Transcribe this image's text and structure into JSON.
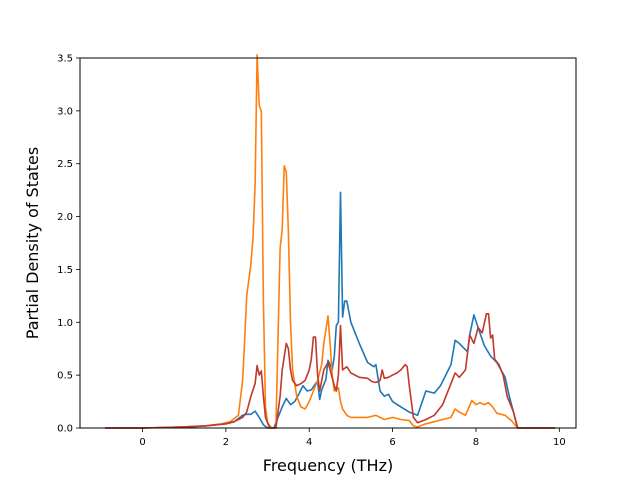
{
  "chart_data": {
    "type": "line",
    "title": "",
    "xlabel": "Frequency (THz)",
    "ylabel": "Partial Density of States",
    "xlim": [
      -1.5,
      10.4
    ],
    "ylim": [
      0,
      3.5
    ],
    "xticks": [
      0,
      2,
      4,
      6,
      8,
      10
    ],
    "yticks": [
      0.0,
      0.5,
      1.0,
      1.5,
      2.0,
      2.5,
      3.0,
      3.5
    ],
    "ytick_labels": [
      "0.0",
      "0.5",
      "1.0",
      "1.5",
      "2.0",
      "2.5",
      "3.0",
      "3.5"
    ],
    "grid": false,
    "legend": false,
    "series": [
      {
        "color": "#1f77b4",
        "points": [
          [
            -0.9,
            0
          ],
          [
            0,
            0
          ],
          [
            0.5,
            0.005
          ],
          [
            1.0,
            0.01
          ],
          [
            1.5,
            0.02
          ],
          [
            2.0,
            0.04
          ],
          [
            2.2,
            0.06
          ],
          [
            2.4,
            0.12
          ],
          [
            2.5,
            0.13
          ],
          [
            2.6,
            0.13
          ],
          [
            2.7,
            0.16
          ],
          [
            2.8,
            0.1
          ],
          [
            2.9,
            0.03
          ],
          [
            3.0,
            0.0
          ],
          [
            3.15,
            0.0
          ],
          [
            3.25,
            0.1
          ],
          [
            3.35,
            0.2
          ],
          [
            3.45,
            0.28
          ],
          [
            3.55,
            0.22
          ],
          [
            3.65,
            0.25
          ],
          [
            3.75,
            0.32
          ],
          [
            3.85,
            0.4
          ],
          [
            3.95,
            0.35
          ],
          [
            4.05,
            0.36
          ],
          [
            4.15,
            0.42
          ],
          [
            4.2,
            0.44
          ],
          [
            4.25,
            0.27
          ],
          [
            4.3,
            0.36
          ],
          [
            4.4,
            0.46
          ],
          [
            4.45,
            0.64
          ],
          [
            4.5,
            0.6
          ],
          [
            4.55,
            0.55
          ],
          [
            4.6,
            0.68
          ],
          [
            4.65,
            0.97
          ],
          [
            4.7,
            1.0
          ],
          [
            4.75,
            2.23
          ],
          [
            4.8,
            1.05
          ],
          [
            4.85,
            1.2
          ],
          [
            4.9,
            1.2
          ],
          [
            5.0,
            1.0
          ],
          [
            5.2,
            0.8
          ],
          [
            5.4,
            0.62
          ],
          [
            5.55,
            0.58
          ],
          [
            5.6,
            0.6
          ],
          [
            5.7,
            0.35
          ],
          [
            5.8,
            0.3
          ],
          [
            5.9,
            0.32
          ],
          [
            6.0,
            0.25
          ],
          [
            6.2,
            0.2
          ],
          [
            6.4,
            0.15
          ],
          [
            6.6,
            0.12
          ],
          [
            6.8,
            0.35
          ],
          [
            7.0,
            0.33
          ],
          [
            7.15,
            0.4
          ],
          [
            7.3,
            0.52
          ],
          [
            7.4,
            0.6
          ],
          [
            7.5,
            0.83
          ],
          [
            7.6,
            0.8
          ],
          [
            7.8,
            0.72
          ],
          [
            7.85,
            0.88
          ],
          [
            7.95,
            1.07
          ],
          [
            8.05,
            0.95
          ],
          [
            8.2,
            0.78
          ],
          [
            8.35,
            0.68
          ],
          [
            8.5,
            0.62
          ],
          [
            8.6,
            0.55
          ],
          [
            8.7,
            0.48
          ],
          [
            8.8,
            0.3
          ],
          [
            8.9,
            0.15
          ],
          [
            9.0,
            0.0
          ],
          [
            9.9,
            0
          ]
        ]
      },
      {
        "color": "#ff7f0e",
        "points": [
          [
            -0.9,
            0
          ],
          [
            0,
            0
          ],
          [
            0.5,
            0.005
          ],
          [
            1.0,
            0.01
          ],
          [
            1.5,
            0.02
          ],
          [
            1.9,
            0.04
          ],
          [
            2.1,
            0.06
          ],
          [
            2.3,
            0.12
          ],
          [
            2.4,
            0.45
          ],
          [
            2.45,
            0.82
          ],
          [
            2.5,
            1.25
          ],
          [
            2.6,
            1.55
          ],
          [
            2.65,
            1.8
          ],
          [
            2.7,
            2.3
          ],
          [
            2.75,
            3.53
          ],
          [
            2.8,
            3.05
          ],
          [
            2.85,
            3.0
          ],
          [
            2.9,
            1.2
          ],
          [
            2.95,
            0.2
          ],
          [
            3.0,
            0.05
          ],
          [
            3.1,
            0.0
          ],
          [
            3.2,
            0.0
          ],
          [
            3.3,
            1.7
          ],
          [
            3.35,
            1.88
          ],
          [
            3.4,
            2.48
          ],
          [
            3.45,
            2.42
          ],
          [
            3.5,
            1.85
          ],
          [
            3.55,
            1.0
          ],
          [
            3.6,
            0.55
          ],
          [
            3.7,
            0.3
          ],
          [
            3.8,
            0.2
          ],
          [
            3.9,
            0.18
          ],
          [
            4.0,
            0.25
          ],
          [
            4.2,
            0.45
          ],
          [
            4.3,
            0.6
          ],
          [
            4.35,
            0.8
          ],
          [
            4.45,
            1.06
          ],
          [
            4.5,
            0.8
          ],
          [
            4.55,
            0.5
          ],
          [
            4.6,
            0.35
          ],
          [
            4.7,
            0.38
          ],
          [
            4.75,
            0.25
          ],
          [
            4.8,
            0.18
          ],
          [
            4.9,
            0.12
          ],
          [
            5.0,
            0.1
          ],
          [
            5.2,
            0.1
          ],
          [
            5.4,
            0.1
          ],
          [
            5.6,
            0.12
          ],
          [
            5.8,
            0.08
          ],
          [
            6.0,
            0.1
          ],
          [
            6.2,
            0.08
          ],
          [
            6.4,
            0.07
          ],
          [
            6.5,
            0.02
          ],
          [
            6.6,
            0.01
          ],
          [
            6.8,
            0.04
          ],
          [
            7.0,
            0.06
          ],
          [
            7.2,
            0.08
          ],
          [
            7.4,
            0.1
          ],
          [
            7.5,
            0.18
          ],
          [
            7.6,
            0.15
          ],
          [
            7.75,
            0.12
          ],
          [
            7.9,
            0.26
          ],
          [
            8.0,
            0.22
          ],
          [
            8.1,
            0.24
          ],
          [
            8.2,
            0.22
          ],
          [
            8.3,
            0.24
          ],
          [
            8.4,
            0.2
          ],
          [
            8.5,
            0.14
          ],
          [
            8.7,
            0.12
          ],
          [
            8.85,
            0.07
          ],
          [
            9.0,
            0.0
          ],
          [
            9.9,
            0
          ]
        ]
      },
      {
        "color": "#c0392b",
        "points": [
          [
            -0.9,
            0
          ],
          [
            0,
            0
          ],
          [
            0.5,
            0.005
          ],
          [
            1.0,
            0.01
          ],
          [
            1.5,
            0.02
          ],
          [
            2.0,
            0.04
          ],
          [
            2.2,
            0.06
          ],
          [
            2.4,
            0.1
          ],
          [
            2.5,
            0.15
          ],
          [
            2.6,
            0.3
          ],
          [
            2.7,
            0.42
          ],
          [
            2.75,
            0.59
          ],
          [
            2.8,
            0.5
          ],
          [
            2.85,
            0.54
          ],
          [
            2.9,
            0.3
          ],
          [
            2.95,
            0.1
          ],
          [
            3.05,
            0.0
          ],
          [
            3.2,
            0.0
          ],
          [
            3.3,
            0.3
          ],
          [
            3.35,
            0.55
          ],
          [
            3.45,
            0.8
          ],
          [
            3.5,
            0.75
          ],
          [
            3.55,
            0.55
          ],
          [
            3.6,
            0.45
          ],
          [
            3.7,
            0.4
          ],
          [
            3.8,
            0.42
          ],
          [
            3.9,
            0.45
          ],
          [
            4.0,
            0.55
          ],
          [
            4.05,
            0.65
          ],
          [
            4.1,
            0.86
          ],
          [
            4.15,
            0.86
          ],
          [
            4.2,
            0.5
          ],
          [
            4.25,
            0.35
          ],
          [
            4.35,
            0.55
          ],
          [
            4.45,
            0.62
          ],
          [
            4.5,
            0.55
          ],
          [
            4.6,
            0.4
          ],
          [
            4.65,
            0.35
          ],
          [
            4.7,
            0.5
          ],
          [
            4.75,
            0.97
          ],
          [
            4.8,
            0.55
          ],
          [
            4.9,
            0.58
          ],
          [
            5.0,
            0.52
          ],
          [
            5.2,
            0.48
          ],
          [
            5.4,
            0.47
          ],
          [
            5.5,
            0.44
          ],
          [
            5.6,
            0.43
          ],
          [
            5.7,
            0.45
          ],
          [
            5.75,
            0.55
          ],
          [
            5.8,
            0.47
          ],
          [
            5.9,
            0.48
          ],
          [
            6.0,
            0.5
          ],
          [
            6.1,
            0.52
          ],
          [
            6.2,
            0.55
          ],
          [
            6.3,
            0.6
          ],
          [
            6.35,
            0.58
          ],
          [
            6.4,
            0.4
          ],
          [
            6.5,
            0.1
          ],
          [
            6.6,
            0.05
          ],
          [
            6.8,
            0.08
          ],
          [
            7.0,
            0.12
          ],
          [
            7.2,
            0.22
          ],
          [
            7.4,
            0.42
          ],
          [
            7.5,
            0.52
          ],
          [
            7.6,
            0.48
          ],
          [
            7.75,
            0.55
          ],
          [
            7.85,
            0.88
          ],
          [
            7.95,
            0.8
          ],
          [
            8.05,
            0.95
          ],
          [
            8.15,
            0.9
          ],
          [
            8.25,
            1.08
          ],
          [
            8.3,
            1.08
          ],
          [
            8.35,
            0.85
          ],
          [
            8.4,
            0.88
          ],
          [
            8.45,
            0.65
          ],
          [
            8.55,
            0.6
          ],
          [
            8.65,
            0.5
          ],
          [
            8.75,
            0.3
          ],
          [
            8.9,
            0.15
          ],
          [
            9.0,
            0.0
          ],
          [
            9.9,
            0
          ]
        ]
      }
    ]
  }
}
